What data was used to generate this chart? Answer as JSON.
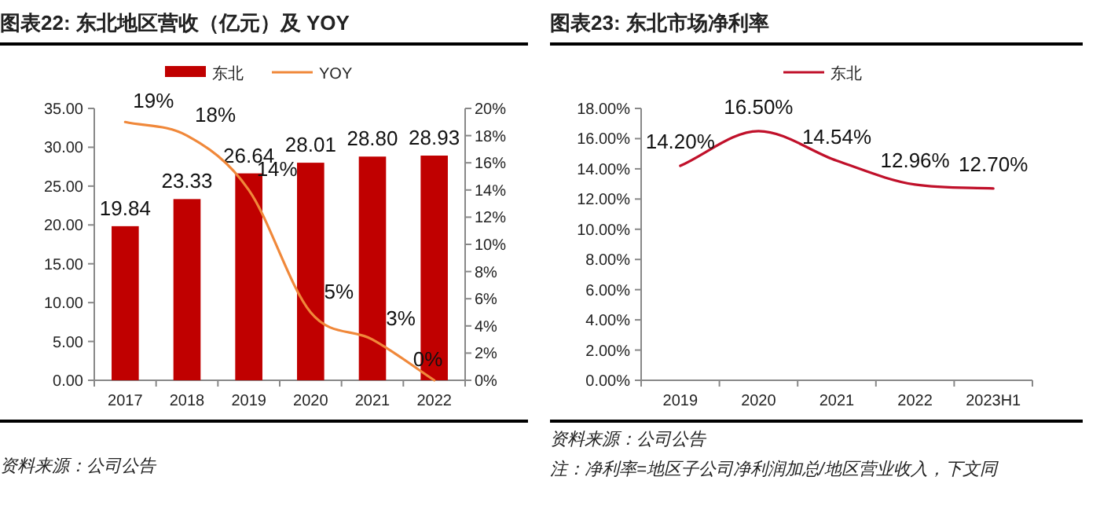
{
  "chart_data": [
    {
      "type": "bar",
      "title": "图表22: 东北地区营收（亿元）及 YOY",
      "categories": [
        "2017",
        "2018",
        "2019",
        "2020",
        "2021",
        "2022"
      ],
      "series": [
        {
          "name": "东北",
          "color": "#c00000",
          "values": [
            19.84,
            23.33,
            26.64,
            28.01,
            28.8,
            28.93
          ],
          "value_labels": [
            "19.84",
            "23.33",
            "26.64",
            "28.01",
            "28.80",
            "28.93"
          ]
        },
        {
          "name": "YOY",
          "type": "line",
          "axis": "y2",
          "color": "#f0883a",
          "values": [
            19,
            18,
            14,
            5,
            3,
            0
          ],
          "value_labels": [
            "19%",
            "18%",
            "14%",
            "5%",
            "3%",
            "0%"
          ]
        }
      ],
      "ylim": [
        0,
        35
      ],
      "yticks": [
        {
          "value": 0,
          "label": "0.00"
        },
        {
          "value": 5,
          "label": "5.00"
        },
        {
          "value": 10,
          "label": "10.00"
        },
        {
          "value": 15,
          "label": "15.00"
        },
        {
          "value": 20,
          "label": "20.00"
        },
        {
          "value": 25,
          "label": "25.00"
        },
        {
          "value": 30,
          "label": "30.00"
        },
        {
          "value": 35,
          "label": "35.00"
        }
      ],
      "y2lim": [
        0,
        20
      ],
      "y2ticks": [
        {
          "value": 0,
          "label": "0%"
        },
        {
          "value": 2,
          "label": "2%"
        },
        {
          "value": 4,
          "label": "4%"
        },
        {
          "value": 6,
          "label": "6%"
        },
        {
          "value": 8,
          "label": "8%"
        },
        {
          "value": 10,
          "label": "10%"
        },
        {
          "value": 12,
          "label": "12%"
        },
        {
          "value": 14,
          "label": "14%"
        },
        {
          "value": 16,
          "label": "16%"
        },
        {
          "value": 18,
          "label": "18%"
        },
        {
          "value": 20,
          "label": "20%"
        }
      ],
      "legend": "top",
      "annotations": [
        "资料来源：公司公告"
      ]
    },
    {
      "type": "line",
      "title": "图表23: 东北市场净利率",
      "categories": [
        "2019",
        "2020",
        "2021",
        "2022",
        "2023H1"
      ],
      "series": [
        {
          "name": "东北",
          "color": "#c0102a",
          "values": [
            14.2,
            16.5,
            14.54,
            12.96,
            12.7
          ],
          "value_labels": [
            "14.20%",
            "16.50%",
            "14.54%",
            "12.96%",
            "12.70%"
          ]
        }
      ],
      "ylim": [
        0,
        18
      ],
      "yticks": [
        {
          "value": 0,
          "label": "0.00%"
        },
        {
          "value": 2,
          "label": "2.00%"
        },
        {
          "value": 4,
          "label": "4.00%"
        },
        {
          "value": 6,
          "label": "6.00%"
        },
        {
          "value": 8,
          "label": "8.00%"
        },
        {
          "value": 10,
          "label": "10.00%"
        },
        {
          "value": 12,
          "label": "12.00%"
        },
        {
          "value": 14,
          "label": "14.00%"
        },
        {
          "value": 16,
          "label": "16.00%"
        },
        {
          "value": 18,
          "label": "18.00%"
        }
      ],
      "legend": "top",
      "annotations": [
        "资料来源：公司公告",
        "注：净利率=地区子公司净利润加总/地区营业收入，下文同"
      ]
    }
  ]
}
